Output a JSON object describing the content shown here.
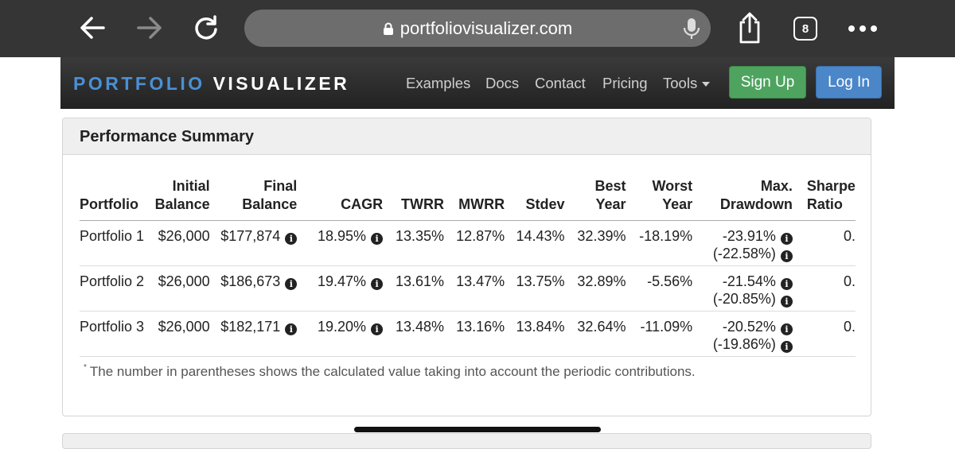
{
  "browser": {
    "url": "portfoliovisualizer.com",
    "tab_count": "8"
  },
  "site": {
    "brand_part1": "PORTFOLIO",
    "brand_part2": "VISUALIZER",
    "menu": [
      "Examples",
      "Docs",
      "Contact",
      "Pricing",
      "Tools"
    ],
    "signup_label": "Sign Up",
    "login_label": "Log In"
  },
  "panel": {
    "title": "Performance Summary",
    "columns": [
      {
        "line1": "",
        "line2": "Portfolio"
      },
      {
        "line1": "Initial",
        "line2": "Balance"
      },
      {
        "line1": "Final",
        "line2": "Balance"
      },
      {
        "line1": "",
        "line2": "CAGR"
      },
      {
        "line1": "",
        "line2": "TWRR"
      },
      {
        "line1": "",
        "line2": "MWRR"
      },
      {
        "line1": "",
        "line2": "Stdev"
      },
      {
        "line1": "Best",
        "line2": "Year"
      },
      {
        "line1": "Worst",
        "line2": "Year"
      },
      {
        "line1": "Max.",
        "line2": "Drawdown"
      },
      {
        "line1": "Sharpe",
        "line2": "Ratio"
      }
    ],
    "rows": [
      {
        "portfolio": "Portfolio 1",
        "initial": "$26,000",
        "final": "$177,874",
        "cagr": "18.95%",
        "twrr": "13.35%",
        "mwrr": "12.87%",
        "stdev": "14.43%",
        "best": "32.39%",
        "worst": "-18.19%",
        "drawdown": "-23.91%",
        "drawdown_contrib": "(-22.58%)",
        "sharpe": "0."
      },
      {
        "portfolio": "Portfolio 2",
        "initial": "$26,000",
        "final": "$186,673",
        "cagr": "19.47%",
        "twrr": "13.61%",
        "mwrr": "13.47%",
        "stdev": "13.75%",
        "best": "32.89%",
        "worst": "-5.56%",
        "drawdown": "-21.54%",
        "drawdown_contrib": "(-20.85%)",
        "sharpe": "0."
      },
      {
        "portfolio": "Portfolio 3",
        "initial": "$26,000",
        "final": "$182,171",
        "cagr": "19.20%",
        "twrr": "13.48%",
        "mwrr": "13.16%",
        "stdev": "13.84%",
        "best": "32.64%",
        "worst": "-11.09%",
        "drawdown": "-20.52%",
        "drawdown_contrib": "(-19.86%)",
        "sharpe": "0."
      }
    ],
    "footnote_mark": "*",
    "footnote": "The number in parentheses shows the calculated value taking into account the periodic contributions."
  },
  "icons": {
    "back": "back-arrow-icon",
    "forward": "forward-arrow-icon",
    "reload": "reload-icon",
    "lock": "lock-icon",
    "mic": "microphone-icon",
    "share": "share-icon",
    "more": "more-dots-icon",
    "info": "info-icon"
  }
}
